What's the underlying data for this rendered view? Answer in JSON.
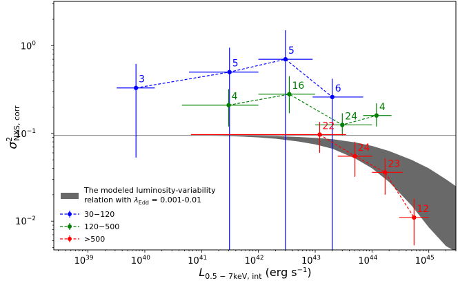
{
  "chart_data": {
    "type": "scatter",
    "xscale": "log",
    "yscale": "log",
    "xlim": [
      2.5e+38,
      3e+45
    ],
    "ylim": [
      0.0047,
      3.2
    ],
    "xlabel": {
      "main": "L",
      "sub": "0.5 − 7keV, int",
      "unit": " (erg s",
      "unit_sup": "−1",
      "unit_end": ")"
    },
    "ylabel": {
      "main": "σ",
      "sup": "2",
      "sub": "NXS, corr"
    },
    "x_ticks": [
      {
        "value": 1e+39,
        "base": "10",
        "exp": "39"
      },
      {
        "value": 1e+40,
        "base": "10",
        "exp": "40"
      },
      {
        "value": 1e+41,
        "base": "10",
        "exp": "41"
      },
      {
        "value": 1e+42,
        "base": "10",
        "exp": "42"
      },
      {
        "value": 1e+43,
        "base": "10",
        "exp": "43"
      },
      {
        "value": 1e+44,
        "base": "10",
        "exp": "44"
      },
      {
        "value": 1e+45,
        "base": "10",
        "exp": "45"
      }
    ],
    "y_ticks": [
      {
        "value": 0.01,
        "base": "10",
        "exp": "−2"
      },
      {
        "value": 0.1,
        "base": "10",
        "exp": "−1"
      },
      {
        "value": 1,
        "base": "10",
        "exp": "0"
      }
    ],
    "reference_line": {
      "y": 0.095,
      "color": "#808080"
    },
    "model_band": {
      "color": "#696969",
      "x": [
        1e+41,
        2e+41,
        5e+41,
        1e+42,
        2e+42,
        5e+42,
        1e+43,
        2e+43,
        5e+43,
        1e+44,
        2e+44,
        5e+44,
        1e+45,
        2e+45,
        3e+45
      ],
      "upper": [
        0.095,
        0.095,
        0.095,
        0.094,
        0.093,
        0.091,
        0.089,
        0.086,
        0.079,
        0.072,
        0.063,
        0.05,
        0.04,
        0.03,
        0.025
      ],
      "lower": [
        0.095,
        0.094,
        0.092,
        0.09,
        0.087,
        0.081,
        0.075,
        0.067,
        0.052,
        0.04,
        0.028,
        0.015,
        0.0085,
        0.0052,
        0.0045
      ]
    },
    "legend": {
      "position": "lower-left",
      "band_label_line1": "The modeled luminosity-variability",
      "band_label_line2_pre": "relation with ",
      "band_label_lambda": "λ",
      "band_label_lambda_sub": "Edd",
      "band_label_line2_post": " = 0.001-0.01"
    },
    "series": [
      {
        "name": "30−120",
        "color": "#0000ff",
        "points": [
          {
            "x": 7e+39,
            "y": 0.33,
            "xlo": 3.2e+39,
            "xhi": 1.5e+40,
            "ylo": 0.053,
            "yhi": 0.62,
            "label": "3"
          },
          {
            "x": 3.1e+41,
            "y": 0.5,
            "xlo": 6e+40,
            "xhi": 1e+42,
            "ylo": 0.0047,
            "yhi": 0.95,
            "label": "5"
          },
          {
            "x": 3e+42,
            "y": 0.7,
            "xlo": 1e+42,
            "xhi": 9e+42,
            "ylo": 0.0047,
            "yhi": 1.5,
            "label": "5"
          },
          {
            "x": 2e+43,
            "y": 0.26,
            "xlo": 9e+42,
            "xhi": 7e+43,
            "ylo": 0.0047,
            "yhi": 0.42,
            "label": "6"
          }
        ]
      },
      {
        "name": "120−500",
        "color": "#008000",
        "points": [
          {
            "x": 3e+41,
            "y": 0.21,
            "xlo": 4.5e+40,
            "xhi": 1e+42,
            "ylo": 0.12,
            "yhi": 0.32,
            "label": "4"
          },
          {
            "x": 3.5e+42,
            "y": 0.28,
            "xlo": 1e+42,
            "xhi": 1e+43,
            "ylo": 0.17,
            "yhi": 0.45,
            "label": "16"
          },
          {
            "x": 3e+43,
            "y": 0.125,
            "xlo": 1e+43,
            "xhi": 1e+44,
            "ylo": 0.095,
            "yhi": 0.17,
            "label": "24"
          },
          {
            "x": 1.2e+44,
            "y": 0.16,
            "xlo": 7e+43,
            "xhi": 2.2e+44,
            "ylo": 0.12,
            "yhi": 0.22,
            "label": "4"
          }
        ]
      },
      {
        "name": ">500",
        "color": "#ff0000",
        "points": [
          {
            "x": 1.2e+43,
            "y": 0.097,
            "xlo": 6.5e+40,
            "xhi": 3.5e+43,
            "ylo": 0.06,
            "yhi": 0.135,
            "label": "22"
          },
          {
            "x": 5e+43,
            "y": 0.055,
            "xlo": 2.5e+43,
            "xhi": 1e+44,
            "ylo": 0.032,
            "yhi": 0.08,
            "label": "24"
          },
          {
            "x": 1.7e+44,
            "y": 0.036,
            "xlo": 1e+44,
            "xhi": 3.5e+44,
            "ylo": 0.02,
            "yhi": 0.052,
            "label": "23"
          },
          {
            "x": 5.5e+44,
            "y": 0.011,
            "xlo": 3e+44,
            "xhi": 1e+45,
            "ylo": 0.0053,
            "yhi": 0.018,
            "label": "12"
          }
        ]
      }
    ]
  }
}
